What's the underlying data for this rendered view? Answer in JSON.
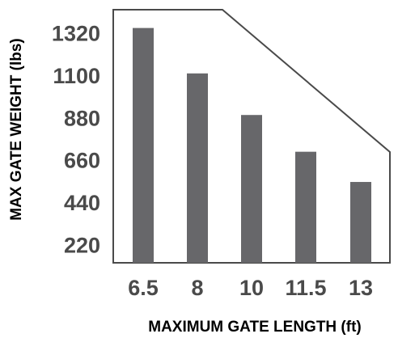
{
  "chart_data": {
    "type": "bar",
    "categories": [
      "6.5",
      "8",
      "10",
      "11.5",
      "13"
    ],
    "values": [
      1345,
      1109,
      893,
      702,
      545
    ],
    "xlabel": "MAXIMUM GATE LENGTH (ft)",
    "ylabel": "MAX GATE WEIGHT (lbs)",
    "yticks": [
      "220",
      "440",
      "660",
      "880",
      "1100",
      "1320"
    ],
    "ytick_values": [
      220,
      440,
      660,
      880,
      1100,
      1320
    ],
    "ylim": [
      125,
      1440
    ],
    "grid": false,
    "colors": {
      "bar": "#67676a",
      "outline": "#4a4a4a",
      "tick_text": "#4a4a4a",
      "axis_label": "#000000"
    }
  }
}
